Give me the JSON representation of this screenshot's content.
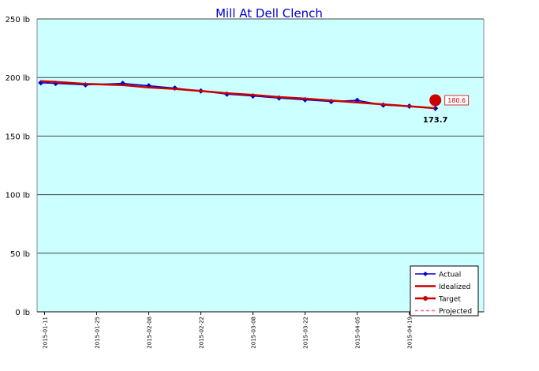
{
  "colors": {
    "background": "#ffffff",
    "plot_area": "#ccffff",
    "gridline": "#444444",
    "title": "#0000cc",
    "actual": "#0000cc",
    "idealized": "#cc0000",
    "target": "#cc0000",
    "projected": "#ff66aa"
  },
  "chart_data": {
    "type": "line",
    "title": "Mill At Dell Clench",
    "xlabel": "",
    "ylabel": "",
    "ylim": [
      0,
      250
    ],
    "y_unit": "lb",
    "y_ticks": [
      "0 lb",
      "50 lb",
      "100 lb",
      "150 lb",
      "200 lb",
      "250 lb"
    ],
    "y_tick_values": [
      0,
      50,
      100,
      150,
      200,
      250
    ],
    "xlim": [
      "2015-01-09",
      "2015-05-09"
    ],
    "x_ticks": [
      "2015-01-11",
      "2015-01-25",
      "2015-02-08",
      "2015-02-22",
      "2015-03-08",
      "2015-03-22",
      "2015-04-05",
      "2015-04-19"
    ],
    "grid": true,
    "legend_position": "bottom-right",
    "series": [
      {
        "name": "Actual",
        "x": [
          "2015-01-10",
          "2015-01-14",
          "2015-01-22",
          "2015-02-01",
          "2015-02-08",
          "2015-02-15",
          "2015-02-22",
          "2015-03-01",
          "2015-03-08",
          "2015-03-15",
          "2015-03-22",
          "2015-03-29",
          "2015-04-05",
          "2015-04-12",
          "2015-04-19",
          "2015-04-26"
        ],
        "values": [
          195.5,
          195.0,
          193.7,
          195.0,
          193.0,
          191.0,
          188.5,
          185.8,
          184.2,
          182.5,
          181.0,
          179.5,
          180.5,
          176.5,
          175.5,
          173.7
        ]
      },
      {
        "name": "Idealized",
        "x": [
          "2015-01-10",
          "2015-01-14",
          "2015-01-22",
          "2015-02-01",
          "2015-02-08",
          "2015-02-15",
          "2015-02-22",
          "2015-03-01",
          "2015-03-08",
          "2015-03-15",
          "2015-03-22",
          "2015-03-29",
          "2015-04-05",
          "2015-04-12",
          "2015-04-19",
          "2015-04-26"
        ],
        "values": [
          196.8,
          196.2,
          194.6,
          193.5,
          191.5,
          190.3,
          188.5,
          186.6,
          185.2,
          183.3,
          182.0,
          180.3,
          178.8,
          177.0,
          175.5,
          173.8
        ]
      },
      {
        "name": "Target",
        "x": [
          "2015-04-26"
        ],
        "values": [
          180.6
        ]
      },
      {
        "name": "Projected",
        "x": [],
        "values": []
      }
    ],
    "annotations": [
      {
        "text": "180.6",
        "x": "2015-04-26",
        "y": 180.6,
        "boxed": true
      },
      {
        "text": "173.7",
        "x": "2015-04-26",
        "y": 173.7,
        "boxed": false
      }
    ]
  }
}
